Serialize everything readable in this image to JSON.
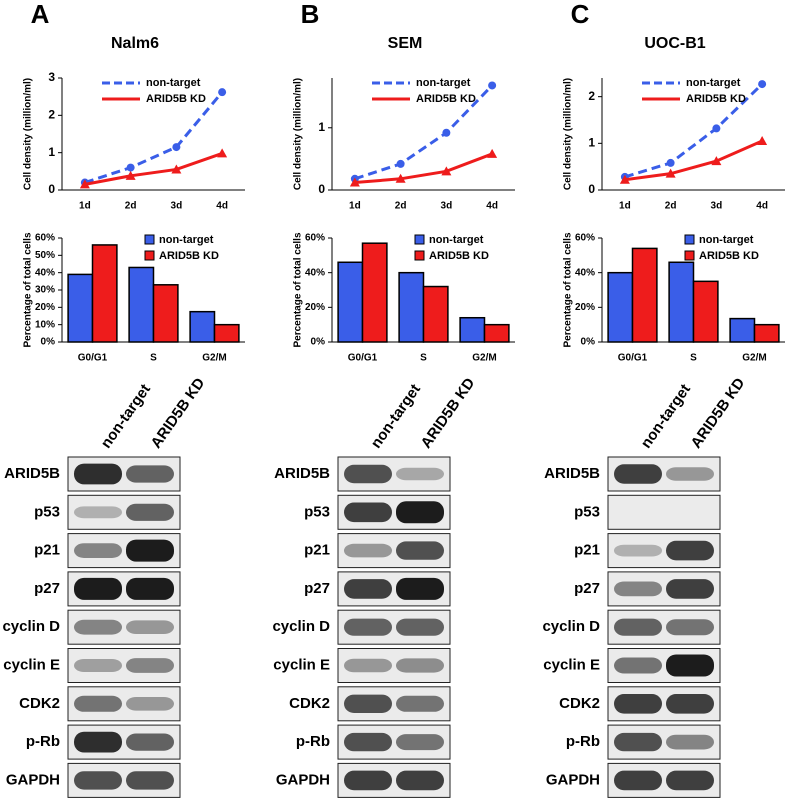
{
  "panels": [
    {
      "letter": "A",
      "blot": {
        "lanes": [
          "non-target",
          "ARID5B KD"
        ],
        "proteins": [
          "ARID5B",
          "p53",
          "p21",
          "p27",
          "cyclin D",
          "cyclin E",
          "CDK2",
          "p-Rb",
          "GAPDH"
        ]
      }
    },
    {
      "letter": "B",
      "blot": {
        "lanes": [
          "non-target",
          "ARID5B KD"
        ],
        "proteins": [
          "ARID5B",
          "p53",
          "p21",
          "p27",
          "cyclin D",
          "cyclin E",
          "CDK2",
          "p-Rb",
          "GAPDH"
        ]
      }
    },
    {
      "letter": "C",
      "blot": {
        "lanes": [
          "non-target",
          "ARID5B KD"
        ],
        "proteins": [
          "ARID5B",
          "p53",
          "p21",
          "p27",
          "cyclin D",
          "cyclin E",
          "CDK2",
          "p-Rb",
          "GAPDH"
        ]
      }
    }
  ],
  "chart_data": [
    {
      "type": "line",
      "title": "Nalm6",
      "y_label": "Cell density (million/ml)",
      "categories": [
        "1d",
        "2d",
        "3d",
        "4d"
      ],
      "ylim": [
        0,
        3
      ],
      "yticks": [
        0,
        1,
        2,
        3
      ],
      "series": [
        {
          "name": "non-target",
          "color": "#3a5ee8",
          "values": [
            0.2,
            0.6,
            1.15,
            2.62
          ]
        },
        {
          "name": "ARID5B KD",
          "color": "#ee1c1c",
          "values": [
            0.15,
            0.38,
            0.55,
            0.98
          ]
        }
      ]
    },
    {
      "type": "line",
      "title": "SEM",
      "y_label": "Cell density (million/ml)",
      "categories": [
        "1d",
        "2d",
        "3d",
        "4d"
      ],
      "ylim": [
        0,
        1.8
      ],
      "yticks": [
        0,
        1
      ],
      "series": [
        {
          "name": "non-target",
          "color": "#3a5ee8",
          "values": [
            0.18,
            0.42,
            0.92,
            1.68
          ]
        },
        {
          "name": "ARID5B KD",
          "color": "#ee1c1c",
          "values": [
            0.12,
            0.18,
            0.3,
            0.58
          ]
        }
      ]
    },
    {
      "type": "line",
      "title": "UOC-B1",
      "y_label": "Cell density (million/ml)",
      "categories": [
        "1d",
        "2d",
        "3d",
        "4d"
      ],
      "ylim": [
        0,
        2.4
      ],
      "yticks": [
        0,
        1,
        2
      ],
      "series": [
        {
          "name": "non-target",
          "color": "#3a5ee8",
          "values": [
            0.28,
            0.58,
            1.32,
            2.27
          ]
        },
        {
          "name": "ARID5B KD",
          "color": "#ee1c1c",
          "values": [
            0.22,
            0.35,
            0.62,
            1.05
          ]
        }
      ]
    },
    {
      "type": "bar",
      "y_label": "Percentage of total cells",
      "categories": [
        "G0/G1",
        "S",
        "G2/M"
      ],
      "ylim": [
        0,
        60
      ],
      "yticks": [
        {
          "value": 0,
          "label": "0%"
        },
        {
          "value": 10,
          "label": "10%"
        },
        {
          "value": 20,
          "label": "20%"
        },
        {
          "value": 30,
          "label": "30%"
        },
        {
          "value": 40,
          "label": "40%"
        },
        {
          "value": 50,
          "label": "50%"
        },
        {
          "value": 60,
          "label": "60%"
        }
      ],
      "series": [
        {
          "name": "non-target",
          "color": "#3a5ee8",
          "values": [
            39,
            43,
            17.5
          ]
        },
        {
          "name": "ARID5B KD",
          "color": "#ee1c1c",
          "values": [
            56,
            33,
            10
          ]
        }
      ]
    },
    {
      "type": "bar",
      "y_label": "Percentage of total cells",
      "categories": [
        "G0/G1",
        "S",
        "G2/M"
      ],
      "ylim": [
        0,
        60
      ],
      "yticks": [
        {
          "value": 0,
          "label": "0%"
        },
        {
          "value": 20,
          "label": "20%"
        },
        {
          "value": 40,
          "label": "40%"
        },
        {
          "value": 60,
          "label": "60%"
        }
      ],
      "series": [
        {
          "name": "non-target",
          "color": "#3a5ee8",
          "values": [
            46,
            40,
            14
          ]
        },
        {
          "name": "ARID5B KD",
          "color": "#ee1c1c",
          "values": [
            57,
            32,
            10
          ]
        }
      ]
    },
    {
      "type": "bar",
      "y_label": "Percentage of total cells",
      "categories": [
        "G0/G1",
        "S",
        "G2/M"
      ],
      "ylim": [
        0,
        60
      ],
      "yticks": [
        {
          "value": 0,
          "label": "0%"
        },
        {
          "value": 20,
          "label": "20%"
        },
        {
          "value": 40,
          "label": "40%"
        },
        {
          "value": 60,
          "label": "60%"
        }
      ],
      "series": [
        {
          "name": "non-target",
          "color": "#3a5ee8",
          "values": [
            40,
            46,
            13.5
          ]
        },
        {
          "name": "ARID5B KD",
          "color": "#ee1c1c",
          "values": [
            54,
            35,
            10
          ]
        }
      ]
    }
  ]
}
